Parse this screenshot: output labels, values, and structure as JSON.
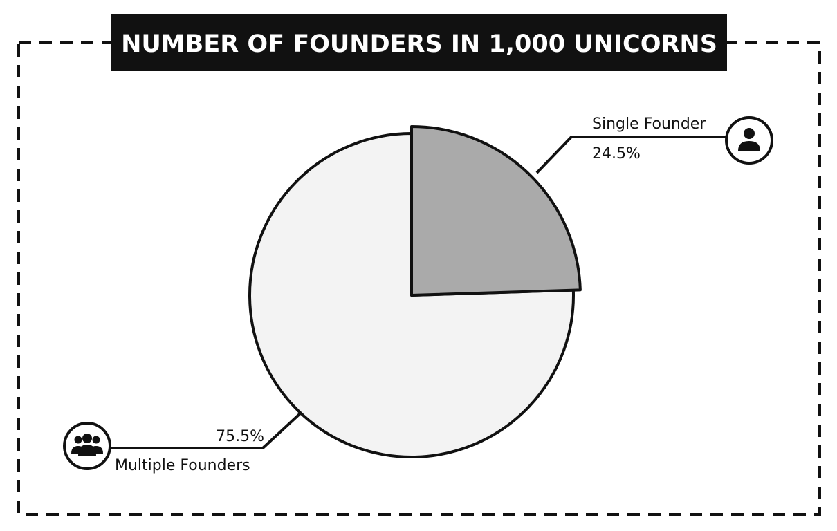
{
  "chart_data": {
    "type": "pie",
    "title": "NUMBER OF FOUNDERS IN 1,000 UNICORNS",
    "slices": [
      {
        "label": "Single Founder",
        "value": 24.5,
        "value_label": "24.5%",
        "color": "#aaaaaa",
        "icon": "person-icon"
      },
      {
        "label": "Multiple Founders",
        "value": 75.5,
        "value_label": "75.5%",
        "color": "#f3f3f3",
        "icon": "group-icon"
      }
    ],
    "start_angle": "12 o'clock",
    "direction": "clockwise",
    "exploded_slice": "Single Founder",
    "legend": "none"
  },
  "style": {
    "title_bg": "#111111",
    "title_fg": "#ffffff",
    "outline": "#111111",
    "border_style": "dashed"
  }
}
